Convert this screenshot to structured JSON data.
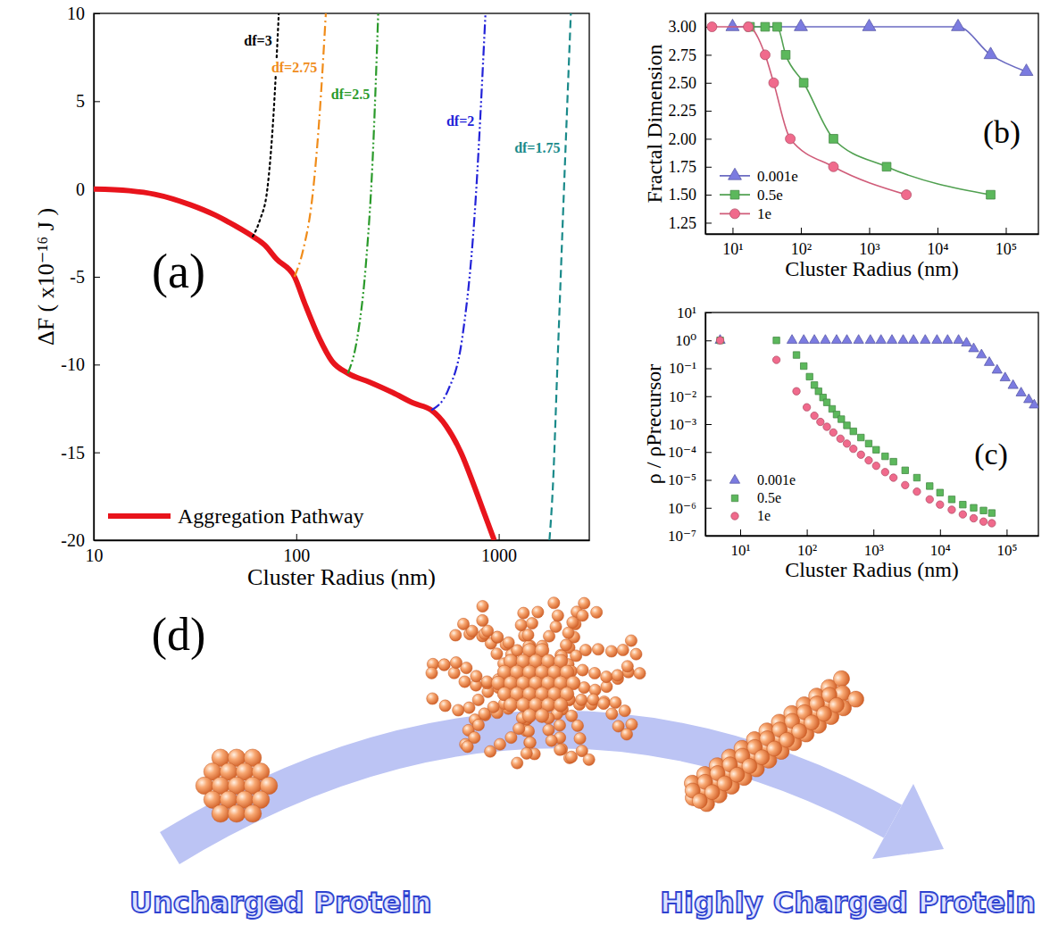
{
  "chart_data": [
    {
      "type": "line",
      "x_label": "Cluster Radius (nm)",
      "y_label": "ΔF ( x10⁻¹⁶ J )",
      "log": "x",
      "xlim": [
        10,
        2800
      ],
      "xticks": [
        10,
        100,
        1000
      ],
      "ylim": [
        -20,
        10
      ],
      "yticks": [
        10,
        5,
        0,
        -5,
        -10,
        -15,
        -20
      ],
      "legend": "lower left",
      "annotations": [
        "(a)"
      ],
      "series": [
        {
          "name": "Aggregation Pathway",
          "color": "#e8141c",
          "line_style": "solid",
          "x": [
            10,
            15,
            20,
            30,
            40,
            50,
            61,
            70,
            80,
            98,
            110,
            130,
            150,
            180,
            230,
            300,
            380,
            465,
            550,
            650,
            750,
            850,
            950
          ],
          "values": [
            0,
            -0.1,
            -0.3,
            -0.9,
            -1.5,
            -2.1,
            -2.7,
            -3.2,
            -4.0,
            -5.0,
            -6.5,
            -8.5,
            -9.8,
            -10.5,
            -11.0,
            -11.6,
            -12.2,
            -12.6,
            -13.5,
            -15.0,
            -16.8,
            -18.5,
            -20
          ]
        },
        {
          "name": "df=3",
          "color": "#000000",
          "line_style": "dotted",
          "x": [
            61,
            66,
            72,
            77,
            82
          ],
          "values": [
            -2.7,
            -1.8,
            0,
            4,
            10
          ]
        },
        {
          "name": "df=2.75",
          "color": "#f08c1a",
          "line_style": "dashdot",
          "x": [
            98,
            108,
            120,
            130,
            140
          ],
          "values": [
            -5.0,
            -3.5,
            -0.5,
            4,
            10
          ]
        },
        {
          "name": "df=2.5",
          "color": "#2a9a2a",
          "line_style": "dashdotdot",
          "x": [
            180,
            200,
            220,
            238,
            254
          ],
          "values": [
            -10.5,
            -8.5,
            -4.5,
            1.5,
            10
          ]
        },
        {
          "name": "df=2",
          "color": "#2323d8",
          "line_style": "dashdotdot",
          "x": [
            465,
            560,
            660,
            760,
            860
          ],
          "values": [
            -12.6,
            -11.5,
            -8.5,
            -1.5,
            10
          ]
        },
        {
          "name": "df=1.75",
          "color": "#1a8a8a",
          "line_style": "dashed",
          "x": [
            1780,
            1850,
            1950,
            2100,
            2270
          ],
          "values": [
            -20,
            -17,
            -10,
            0,
            10
          ]
        }
      ]
    },
    {
      "type": "line",
      "x_label": "Cluster Radius (nm)",
      "y_label": "Fractal Dimension",
      "log": "x",
      "xlim": [
        4,
        300000
      ],
      "xticks": [
        {
          "value": 10,
          "label": "10¹"
        },
        {
          "value": 100,
          "label": "10²"
        },
        {
          "value": 1000,
          "label": "10³"
        },
        {
          "value": 10000,
          "label": "10⁴"
        },
        {
          "value": 100000,
          "label": "10⁵"
        }
      ],
      "ylim": [
        1.15,
        3.12
      ],
      "yticks": [
        {
          "value": 3,
          "label": "3.00"
        },
        {
          "value": 2.75,
          "label": "2.75"
        },
        {
          "value": 2.5,
          "label": "2.50"
        },
        {
          "value": 2.25,
          "label": "2.25"
        },
        {
          "value": 2,
          "label": "2.00"
        },
        {
          "value": 1.75,
          "label": "1.75"
        },
        {
          "value": 1.5,
          "label": "1.50"
        },
        {
          "value": 1.25,
          "label": "1.25"
        }
      ],
      "legend": "lower left",
      "annotations": [
        "(b)"
      ],
      "series": [
        {
          "name": "0.001e",
          "color": "#7b7be0",
          "marker": "triangle",
          "line_style": "solid",
          "x": [
            10,
            100,
            1000,
            20000,
            60000,
            200000
          ],
          "values": [
            3,
            3,
            3,
            3,
            2.75,
            2.6
          ]
        },
        {
          "name": "0.5e",
          "color": "#5cb85c",
          "marker": "square",
          "line_style": "solid",
          "x": [
            18,
            30,
            45,
            60,
            110,
            300,
            1800,
            60000
          ],
          "values": [
            3,
            3,
            3,
            2.75,
            2.5,
            2.0,
            1.75,
            1.5
          ]
        },
        {
          "name": "1e",
          "color": "#f06a8c",
          "marker": "circle",
          "line_style": "solid",
          "x": [
            5,
            17,
            30,
            40,
            70,
            300,
            3500
          ],
          "values": [
            3,
            3,
            2.75,
            2.5,
            2.0,
            1.75,
            1.5
          ]
        }
      ]
    },
    {
      "type": "scatter",
      "x_label": "Cluster Radius (nm)",
      "y_label": "ρ / ρPrecursor",
      "log": true,
      "xlim": [
        3,
        300000
      ],
      "xticks": [
        {
          "value": 10,
          "label": "10¹"
        },
        {
          "value": 100,
          "label": "10²"
        },
        {
          "value": 1000,
          "label": "10³"
        },
        {
          "value": 10000,
          "label": "10⁴"
        },
        {
          "value": 100000,
          "label": "10⁵"
        }
      ],
      "ylim": [
        1e-07,
        10
      ],
      "yticks": [
        {
          "value": 10,
          "label": "10¹"
        },
        {
          "value": 1,
          "label": "10⁰"
        },
        {
          "value": 0.1,
          "label": "10⁻¹"
        },
        {
          "value": 0.01,
          "label": "10⁻²"
        },
        {
          "value": 0.001,
          "label": "10⁻³"
        },
        {
          "value": 0.0001,
          "label": "10⁻⁴"
        },
        {
          "value": 1e-05,
          "label": "10⁻⁵"
        },
        {
          "value": 1e-06,
          "label": "10⁻⁶"
        },
        {
          "value": 1e-07,
          "label": "10⁻⁷"
        }
      ],
      "legend": "lower left",
      "annotations": [
        "(c)"
      ],
      "series": [
        {
          "name": "0.001e",
          "color": "#7b7be0",
          "marker": "triangle",
          "x": [
            5,
            60,
            90,
            130,
            190,
            280,
            400,
            600,
            900,
            1300,
            1900,
            2800,
            4000,
            6000,
            9000,
            13000,
            19000,
            25000,
            32000,
            42000,
            55000,
            72000,
            95000,
            125000,
            165000,
            215000,
            260000
          ],
          "values": [
            1,
            1,
            1,
            1,
            1,
            1,
            1,
            1,
            1,
            1,
            1,
            1,
            1,
            1,
            1,
            1,
            1,
            0.8,
            0.5,
            0.3,
            0.16,
            0.085,
            0.045,
            0.024,
            0.013,
            0.0075,
            0.0048
          ]
        },
        {
          "name": "0.5e",
          "color": "#5cb85c",
          "marker": "square",
          "x": [
            5,
            35,
            70,
            90,
            110,
            130,
            150,
            175,
            200,
            240,
            280,
            330,
            400,
            500,
            650,
            850,
            1100,
            1500,
            2000,
            3000,
            4500,
            7000,
            10000,
            15000,
            22000,
            32000,
            45000,
            60000
          ],
          "values": [
            1,
            1,
            0.3,
            0.12,
            0.05,
            0.025,
            0.015,
            0.009,
            0.006,
            0.0035,
            0.0022,
            0.0015,
            0.0009,
            0.00055,
            0.00033,
            0.0002,
            0.00012,
            7e-05,
            4.5e-05,
            2.2e-05,
            1.2e-05,
            6e-06,
            3.5e-06,
            2e-06,
            1.3e-06,
            1e-06,
            8e-07,
            6.5e-07
          ]
        },
        {
          "name": "1e",
          "color": "#f06a8c",
          "marker": "circle",
          "x": [
            5,
            35,
            70,
            100,
            130,
            160,
            200,
            250,
            320,
            400,
            500,
            650,
            850,
            1100,
            1500,
            2000,
            3000,
            4500,
            7000,
            10000,
            15000,
            22000,
            32000,
            45000,
            60000
          ],
          "values": [
            1,
            0.2,
            0.015,
            0.004,
            0.002,
            0.0012,
            0.0008,
            0.0005,
            0.0003,
            0.0002,
            0.00013,
            8e-05,
            5e-05,
            3.2e-05,
            1.9e-05,
            1.2e-05,
            6.5e-06,
            3.8e-06,
            2e-06,
            1.3e-06,
            8.5e-07,
            5.8e-07,
            4.2e-07,
            3.2e-07,
            2.8e-07
          ]
        }
      ]
    }
  ],
  "diagram": {
    "label": "(d)",
    "left_label": "Uncharged Protein",
    "right_label": "Highly Charged Protein"
  }
}
